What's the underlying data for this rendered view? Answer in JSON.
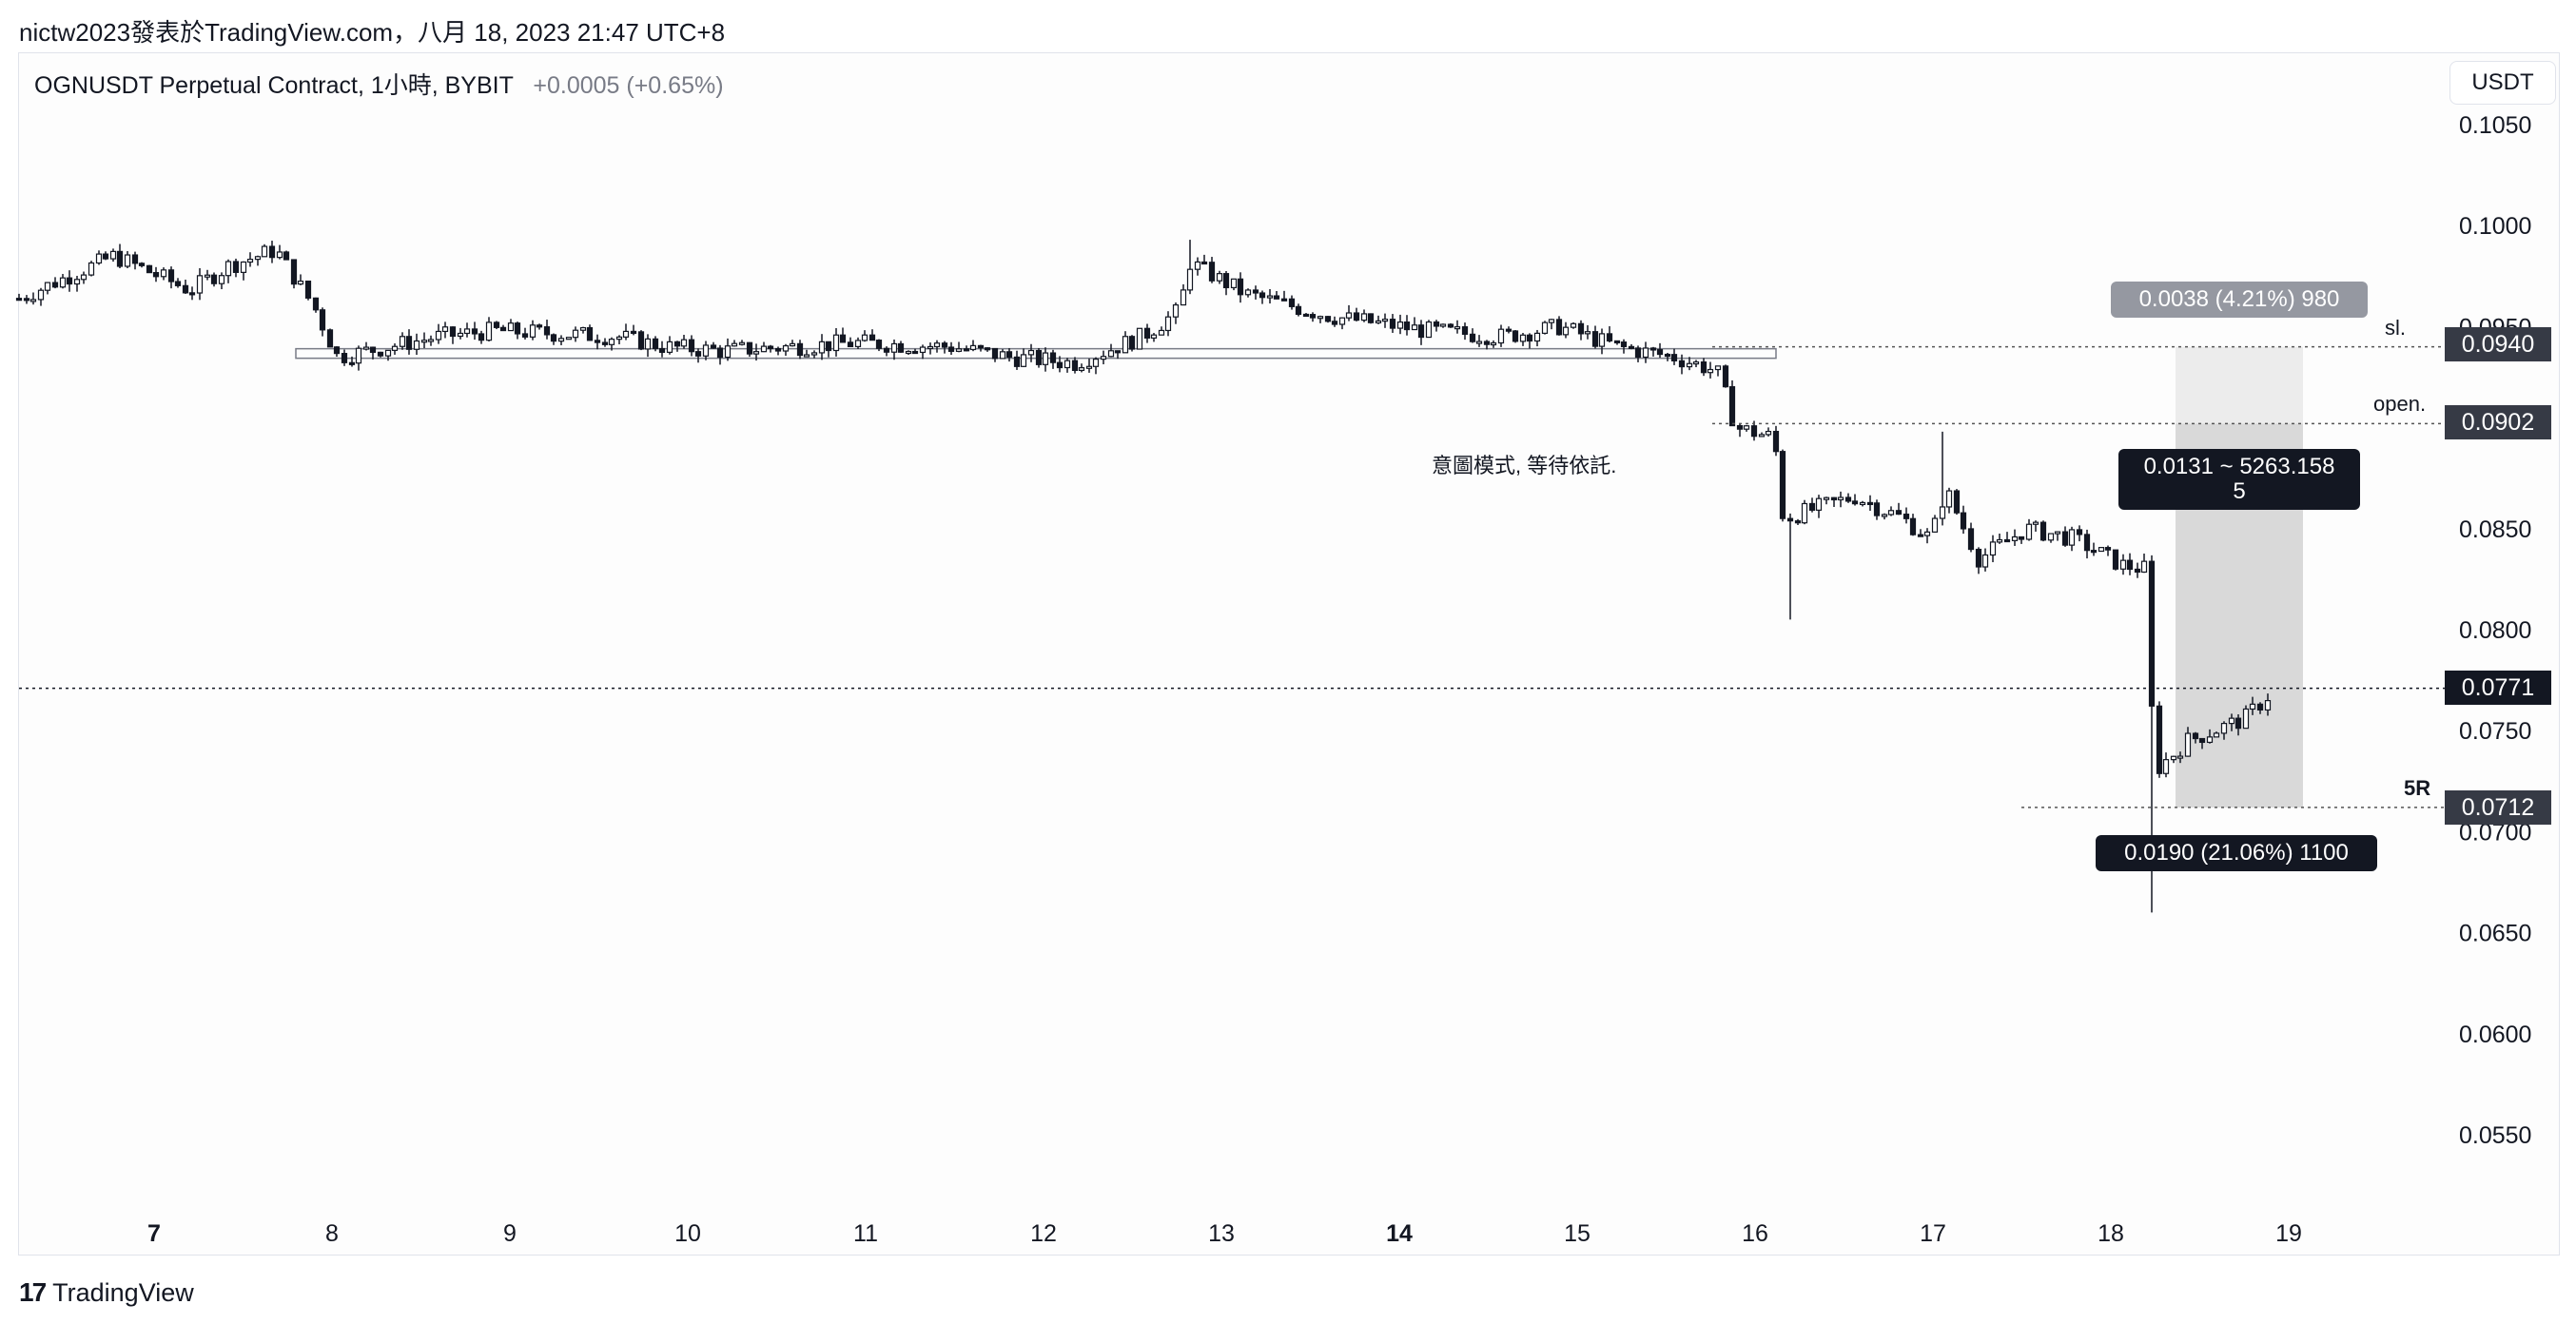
{
  "header": {
    "caption": "nictw2023發表於TradingView.com，八月 18, 2023 21:47 UTC+8"
  },
  "legend": {
    "symbol": "OGNUSDT Perpetual Contract, 1小時, BYBIT",
    "change": "+0.0005 (+0.65%)"
  },
  "currency_button": "USDT",
  "price_axis": [
    "0.1050",
    "0.1000",
    "0.0950",
    "0.0900",
    "0.0850",
    "0.0800",
    "0.0750",
    "0.0700",
    "0.0650",
    "0.0600",
    "0.0550"
  ],
  "time_axis": [
    {
      "label": "7",
      "bold": true
    },
    {
      "label": "8",
      "bold": false
    },
    {
      "label": "9",
      "bold": false
    },
    {
      "label": "10",
      "bold": false
    },
    {
      "label": "11",
      "bold": false
    },
    {
      "label": "12",
      "bold": false
    },
    {
      "label": "13",
      "bold": false
    },
    {
      "label": "14",
      "bold": true
    },
    {
      "label": "15",
      "bold": false
    },
    {
      "label": "16",
      "bold": false
    },
    {
      "label": "17",
      "bold": false
    },
    {
      "label": "18",
      "bold": false
    },
    {
      "label": "19",
      "bold": false
    }
  ],
  "price_tags": {
    "sl": "0.0940",
    "open": "0.0902",
    "current": "0.0771",
    "target": "0.0712"
  },
  "line_labels": {
    "sl": "sl.",
    "open": "open.",
    "target": "5R"
  },
  "callouts": {
    "risk": "0.0038 (4.21%) 980",
    "ratio_line1": "0.0131 ~ 5263.158",
    "ratio_line2": "5",
    "reward": "0.0190 (21.06%) 1100"
  },
  "annotation": "意圖模式, 等待依託.",
  "footer": {
    "brand": "TradingView",
    "logo_icon": "tradingview-logo-icon"
  },
  "colors": {
    "price_tag_dark": "#131722",
    "price_tag_gray": "#363a45",
    "risk_callout": "#9598a1",
    "zone_fill": "#d9d9d9",
    "candle": "#131722"
  },
  "chart_data": {
    "type": "candlestick",
    "ylim": [
      0.0505,
      0.1075
    ],
    "x_days": [
      "7",
      "8",
      "9",
      "10",
      "11",
      "12",
      "13",
      "14",
      "15",
      "16",
      "17",
      "18",
      "19"
    ],
    "support_zone": [
      0.094,
      0.0935
    ],
    "position": {
      "stop_loss": 0.094,
      "entry": 0.0902,
      "target": 0.0712,
      "current": 0.0771
    }
  }
}
